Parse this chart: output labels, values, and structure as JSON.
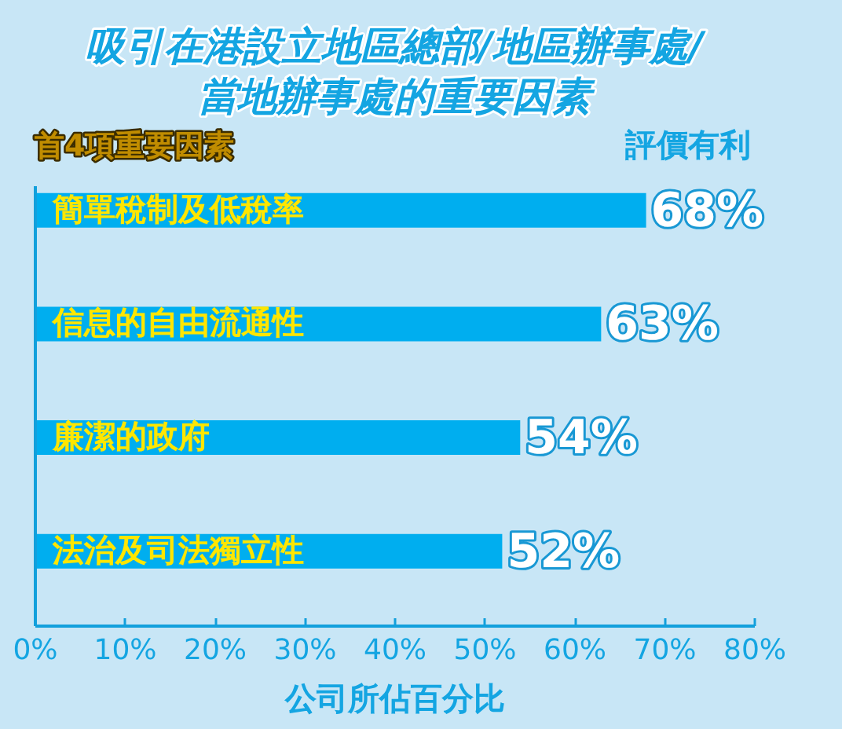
{
  "chart_data": {
    "type": "bar",
    "orientation": "horizontal",
    "title": "吸引在港設立地區總部/地區辦事處/\n當地辦事處的重要因素",
    "ylabel": "首4項重要因素",
    "xlabel": "公司所佔百分比",
    "annotations": [
      "評價有利"
    ],
    "categories": [
      "簡單稅制及低稅率",
      "信息的自由流通性",
      "廉潔的政府",
      "法治及司法獨立性"
    ],
    "values": [
      68,
      63,
      54,
      52
    ],
    "value_labels": [
      "68%",
      "63%",
      "54%",
      "52%"
    ],
    "color": "#00aeef",
    "xlim": [
      0,
      80
    ],
    "xticks": [
      {
        "value": 0,
        "label": "0%"
      },
      {
        "value": 10,
        "label": "10%"
      },
      {
        "value": 20,
        "label": "20%"
      },
      {
        "value": 30,
        "label": "30%"
      },
      {
        "value": 40,
        "label": "40%"
      },
      {
        "value": 50,
        "label": "50%"
      },
      {
        "value": 60,
        "label": "60%"
      },
      {
        "value": 70,
        "label": "70%"
      },
      {
        "value": 80,
        "label": "80%"
      }
    ]
  }
}
